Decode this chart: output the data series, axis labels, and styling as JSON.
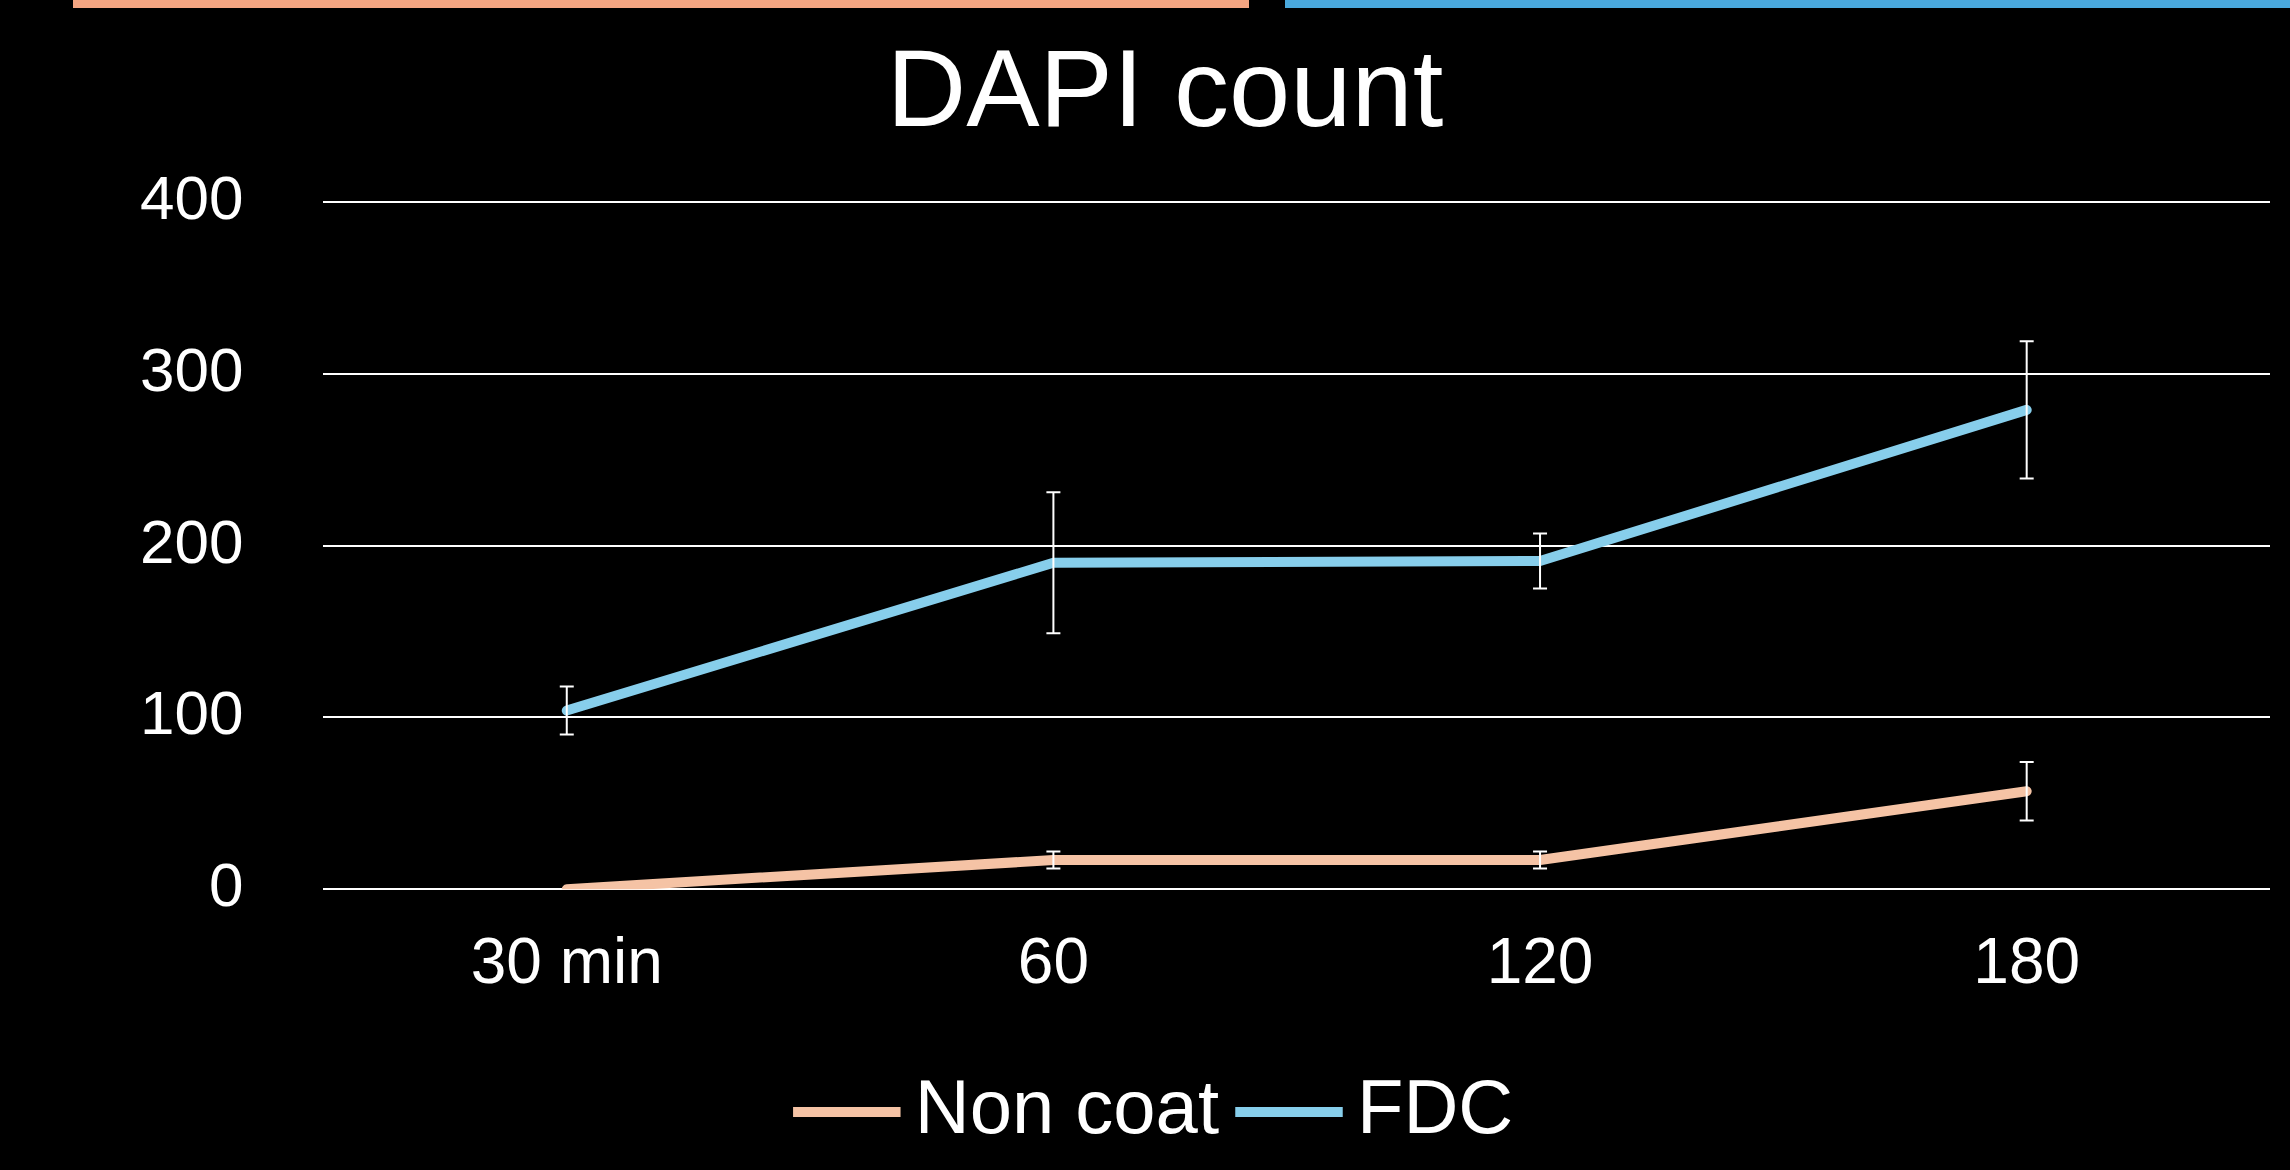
{
  "chart_data": {
    "type": "line",
    "title": "DAPI count",
    "categories": [
      "30 min",
      "60",
      "120",
      "180"
    ],
    "series": [
      {
        "name": "Non coat",
        "color": "#f5c3a5",
        "values": [
          0,
          17,
          17,
          57
        ],
        "errors": [
          null,
          5,
          5,
          17
        ]
      },
      {
        "name": "FDC",
        "color": "#87ceeb",
        "values": [
          104,
          190,
          191,
          279
        ],
        "errors": [
          14,
          41,
          16,
          40
        ]
      }
    ],
    "ylim": [
      0,
      400
    ],
    "yticks": [
      0,
      100,
      200,
      300,
      400
    ],
    "grid": "y",
    "legend": "bottom",
    "line_style": "solid"
  }
}
